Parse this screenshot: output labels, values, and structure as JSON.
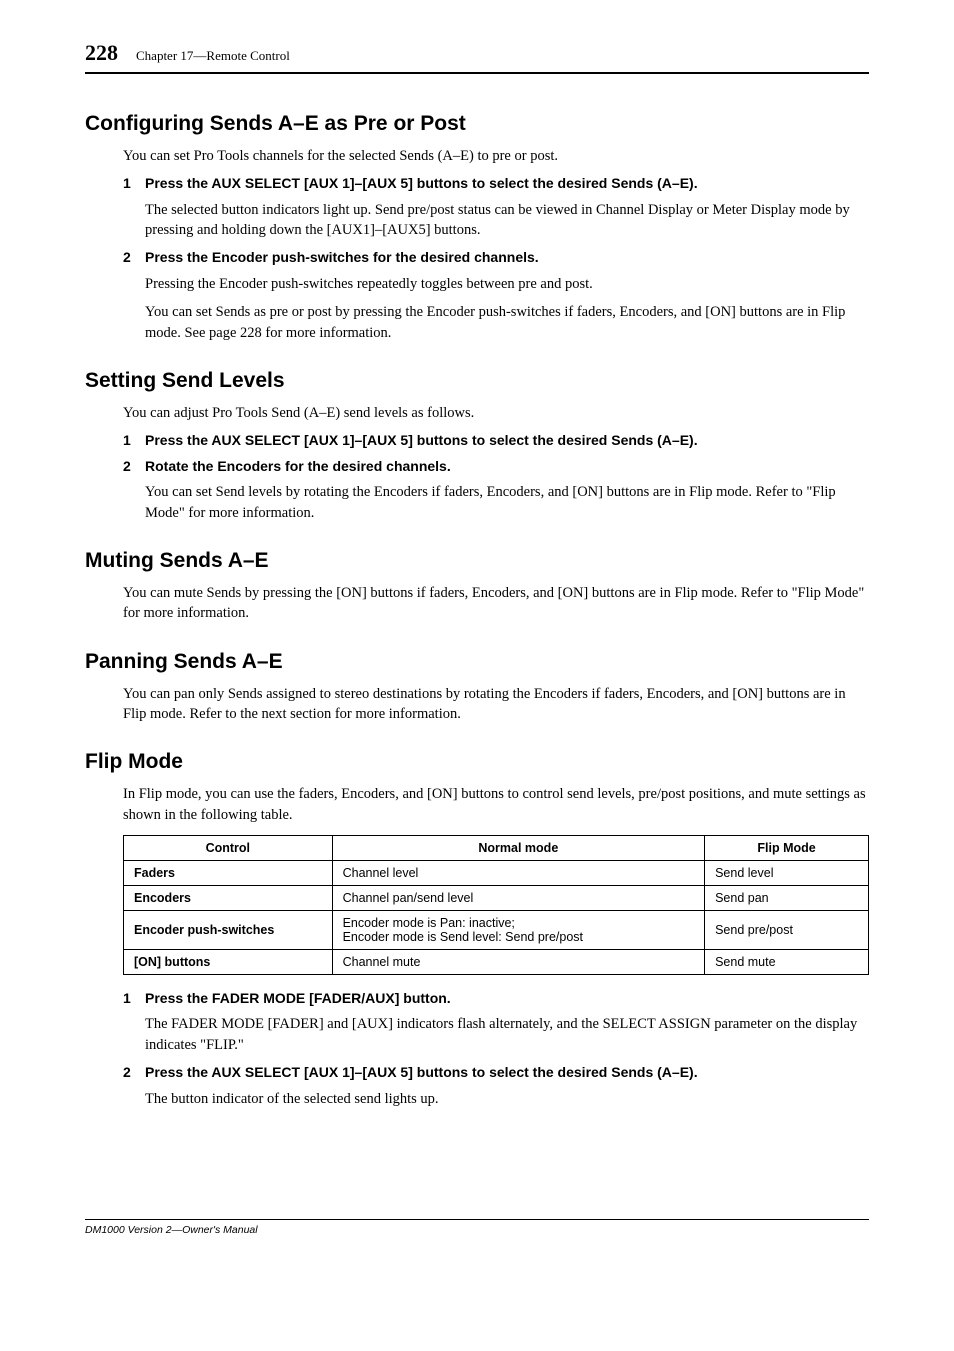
{
  "page_number": "228",
  "chapter_ref": "Chapter 17—Remote Control",
  "footer": "DM1000 Version 2—Owner's Manual",
  "sec1": {
    "title": "Configuring Sends A–E as Pre or Post",
    "intro": "You can set Pro Tools channels for the selected Sends (A–E) to pre or post.",
    "step1_num": "1",
    "step1": "Press the AUX SELECT [AUX 1]–[AUX 5] buttons to select the desired Sends (A–E).",
    "step1_p": "The selected button indicators light up. Send pre/post status can be viewed in Channel Display or Meter Display mode by pressing and holding down the [AUX1]–[AUX5] buttons.",
    "step2_num": "2",
    "step2": "Press the Encoder push-switches for the desired channels.",
    "step2_p1": "Pressing the Encoder push-switches repeatedly toggles between pre and post.",
    "step2_p2": "You can set Sends as pre or post by pressing the Encoder push-switches if faders, Encoders, and [ON] buttons are in Flip mode. See page 228 for more information."
  },
  "sec2": {
    "title": "Setting Send Levels",
    "intro": "You can adjust Pro Tools Send (A–E) send levels as follows.",
    "step1_num": "1",
    "step1": "Press the AUX SELECT [AUX 1]–[AUX 5] buttons to select the desired Sends (A–E).",
    "step2_num": "2",
    "step2": "Rotate the Encoders for the desired channels.",
    "step2_p": "You can set Send levels by rotating the Encoders if faders, Encoders, and [ON] buttons are in Flip mode. Refer to \"Flip Mode\" for more information."
  },
  "sec3": {
    "title": "Muting Sends A–E",
    "p": "You can mute Sends by pressing the [ON] buttons if faders, Encoders, and [ON] buttons are in Flip mode. Refer to \"Flip Mode\" for more information."
  },
  "sec4": {
    "title": "Panning Sends A–E",
    "p": "You can pan only Sends assigned to stereo destinations by rotating the Encoders if faders, Encoders, and [ON] buttons are in Flip mode. Refer to the next section for more information."
  },
  "sec5": {
    "title": "Flip Mode",
    "intro": "In Flip mode, you can use the faders, Encoders, and [ON] buttons to control send levels, pre/post positions, and mute settings as shown in the following table.",
    "table": {
      "headers": [
        "Control",
        "Normal mode",
        "Flip Mode"
      ],
      "rows": [
        [
          "Faders",
          "Channel level",
          "Send level"
        ],
        [
          "Encoders",
          "Channel pan/send level",
          "Send pan"
        ],
        [
          "Encoder push-switches",
          "Encoder mode is Pan: inactive;\nEncoder mode is Send level: Send pre/post",
          "Send pre/post"
        ],
        [
          "[ON] buttons",
          "Channel mute",
          "Send mute"
        ]
      ],
      "col_widths": [
        "28%",
        "50%",
        "22%"
      ]
    },
    "step1_num": "1",
    "step1": "Press the FADER MODE [FADER/AUX] button.",
    "step1_p": "The FADER MODE [FADER] and [AUX] indicators flash alternately, and the SELECT ASSIGN parameter on the display indicates \"FLIP.\"",
    "step2_num": "2",
    "step2": "Press the AUX SELECT [AUX 1]–[AUX 5] buttons to select the desired Sends (A–E).",
    "step2_p": "The button indicator of the selected send lights up."
  }
}
